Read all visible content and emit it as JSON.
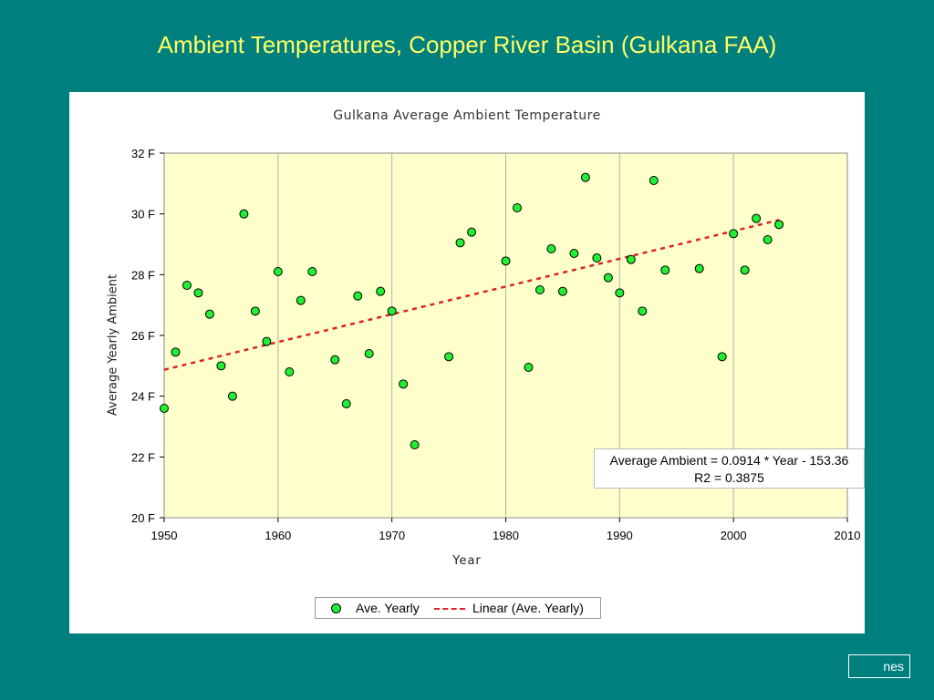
{
  "slide": {
    "title": "Ambient Temperatures, Copper River Basin (Gulkana FAA)",
    "footer": "nes"
  },
  "colors": {
    "background": "#007f7f",
    "title": "#ffff66",
    "plot_area": "#ffffcc",
    "marker": "#22ee33",
    "trend": "#dd2222"
  },
  "chart_data": {
    "type": "scatter",
    "title": "Gulkana Average Ambient Temperature",
    "xlabel": "Year",
    "ylabel": "Average Yearly Ambient",
    "xlim": [
      1950,
      2010
    ],
    "ylim": [
      20,
      32
    ],
    "xticks": [
      "1950",
      "1960",
      "1970",
      "1980",
      "1990",
      "2000",
      "2010"
    ],
    "yticks": [
      "20 F",
      "22 F",
      "24 F",
      "26 F",
      "28 F",
      "30 F",
      "32 F"
    ],
    "grid": "vertical",
    "legend_position": "bottom",
    "series": [
      {
        "name": "Ave. Yearly",
        "x": [
          1950,
          1951,
          1952,
          1953,
          1954,
          1955,
          1956,
          1957,
          1958,
          1959,
          1960,
          1961,
          1962,
          1963,
          1965,
          1966,
          1967,
          1968,
          1969,
          1970,
          1971,
          1972,
          1975,
          1976,
          1977,
          1980,
          1981,
          1982,
          1983,
          1984,
          1985,
          1986,
          1987,
          1988,
          1989,
          1990,
          1991,
          1992,
          1993,
          1994,
          1997,
          1999,
          2000,
          2001,
          2002,
          2003,
          2004
        ],
        "y": [
          23.6,
          25.45,
          27.65,
          27.4,
          26.7,
          25.0,
          24.0,
          30.0,
          26.8,
          25.8,
          28.1,
          24.8,
          27.15,
          28.1,
          25.2,
          23.75,
          27.3,
          25.4,
          27.45,
          26.8,
          24.4,
          22.4,
          25.3,
          29.05,
          29.4,
          28.45,
          30.2,
          24.95,
          27.5,
          28.85,
          27.45,
          28.7,
          31.2,
          28.55,
          27.9,
          27.4,
          28.5,
          26.8,
          31.1,
          28.15,
          28.2,
          25.3,
          29.35,
          28.15,
          29.85,
          29.15,
          29.65
        ]
      },
      {
        "name": "Linear (Ave. Yearly)",
        "type": "trendline",
        "equation": "Average Ambient = 0.0914 * Year - 153.36",
        "r2": "R2 = 0.3875",
        "x": [
          1950,
          2004
        ],
        "y": [
          24.87,
          29.8
        ]
      }
    ]
  }
}
